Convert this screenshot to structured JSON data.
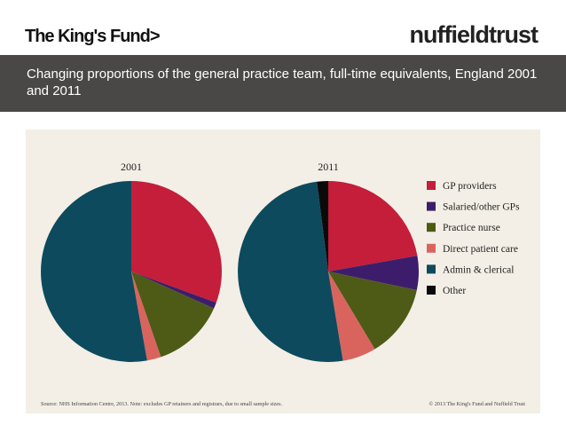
{
  "header": {
    "left_logo": "The King's Fund>",
    "right_logo": "nuffieldtrust",
    "title": "Changing proportions of the general practice team, full-time equivalents, England 2001 and 2011"
  },
  "chart_data": [
    {
      "type": "pie",
      "title": "2001",
      "start_angle_deg": 0,
      "direction": "clockwise",
      "slices": [
        {
          "name": "GP providers",
          "value": 30.6
        },
        {
          "name": "Salaried/other GPs",
          "value": 1.1
        },
        {
          "name": "Practice nurse",
          "value": 13.0
        },
        {
          "name": "Direct patient care",
          "value": 2.5
        },
        {
          "name": "Admin & clerical",
          "value": 52.8
        },
        {
          "name": "Other",
          "value": 0
        }
      ]
    },
    {
      "type": "pie",
      "title": "2011",
      "start_angle_deg": 0,
      "direction": "clockwise",
      "slices": [
        {
          "name": "GP providers",
          "value": 22.2
        },
        {
          "name": "Salaried/other GPs",
          "value": 6.1
        },
        {
          "name": "Practice nurse",
          "value": 13.1
        },
        {
          "name": "Direct patient care",
          "value": 6.0
        },
        {
          "name": "Admin & clerical",
          "value": 50.6
        },
        {
          "name": "Other",
          "value": 2.0
        }
      ]
    }
  ],
  "legend": {
    "placement": "right",
    "items": [
      {
        "label": "GP providers",
        "color": "#c41e3a"
      },
      {
        "label": "Salaried/other GPs",
        "color": "#3d1d6b"
      },
      {
        "label": "Practice nurse",
        "color": "#4d5b16"
      },
      {
        "label": "Direct patient care",
        "color": "#d9645e"
      },
      {
        "label": "Admin & clerical",
        "color": "#0d4a5e"
      },
      {
        "label": "Other",
        "color": "#0a0a0a"
      }
    ]
  },
  "footer": {
    "source": "Source: NHS Information Centre, 2013. Note: excludes GP retainers and registrars, due to small sample sizes.",
    "copyright": "© 2013 The King's Fund and Nuffield Trust"
  }
}
